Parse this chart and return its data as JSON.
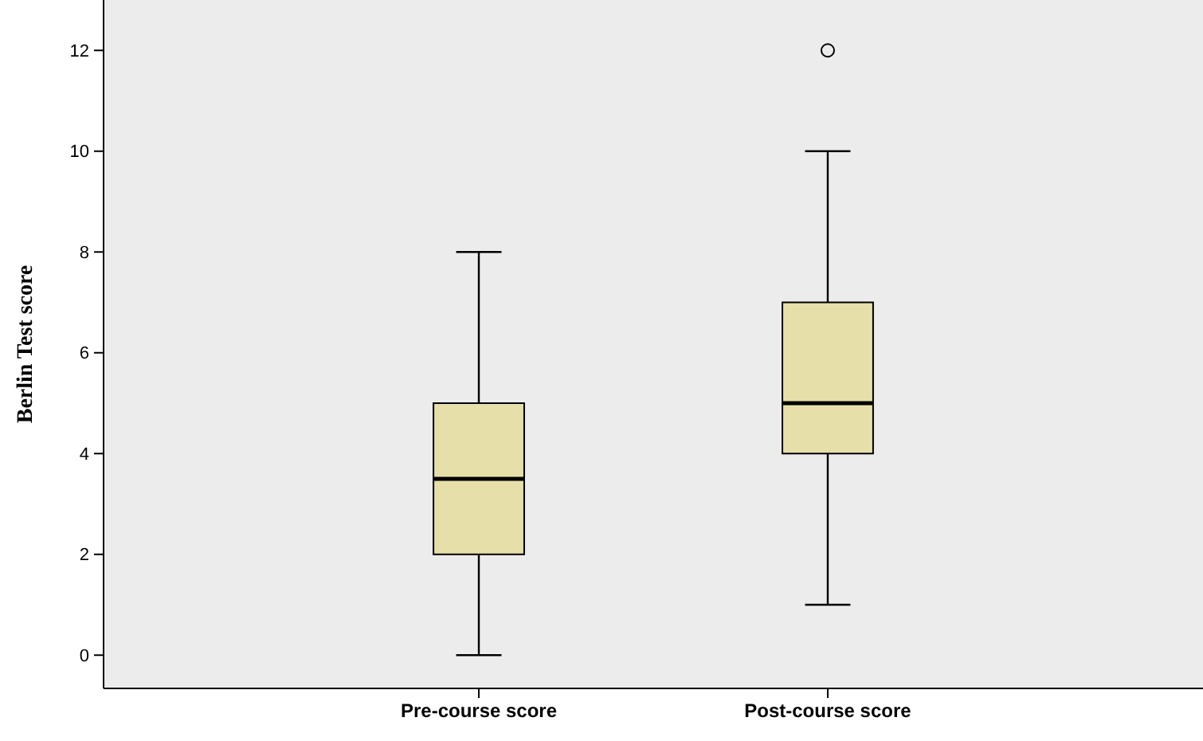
{
  "chart_data": {
    "type": "box",
    "ylabel": "Berlin Test score",
    "categories": [
      "Pre-course score",
      "Post-course score"
    ],
    "boxes": [
      {
        "low": 0,
        "q1": 2,
        "median": 3.5,
        "q3": 5,
        "high": 8
      },
      {
        "low": 1,
        "q1": 4,
        "median": 5,
        "q3": 7,
        "high": 10,
        "outliers": [
          12
        ]
      }
    ],
    "color": "#e6dfaa",
    "ylim": [
      -0.66,
      13
    ],
    "yticks": [
      0,
      2,
      4,
      6,
      8,
      10,
      12
    ],
    "grid": false
  }
}
